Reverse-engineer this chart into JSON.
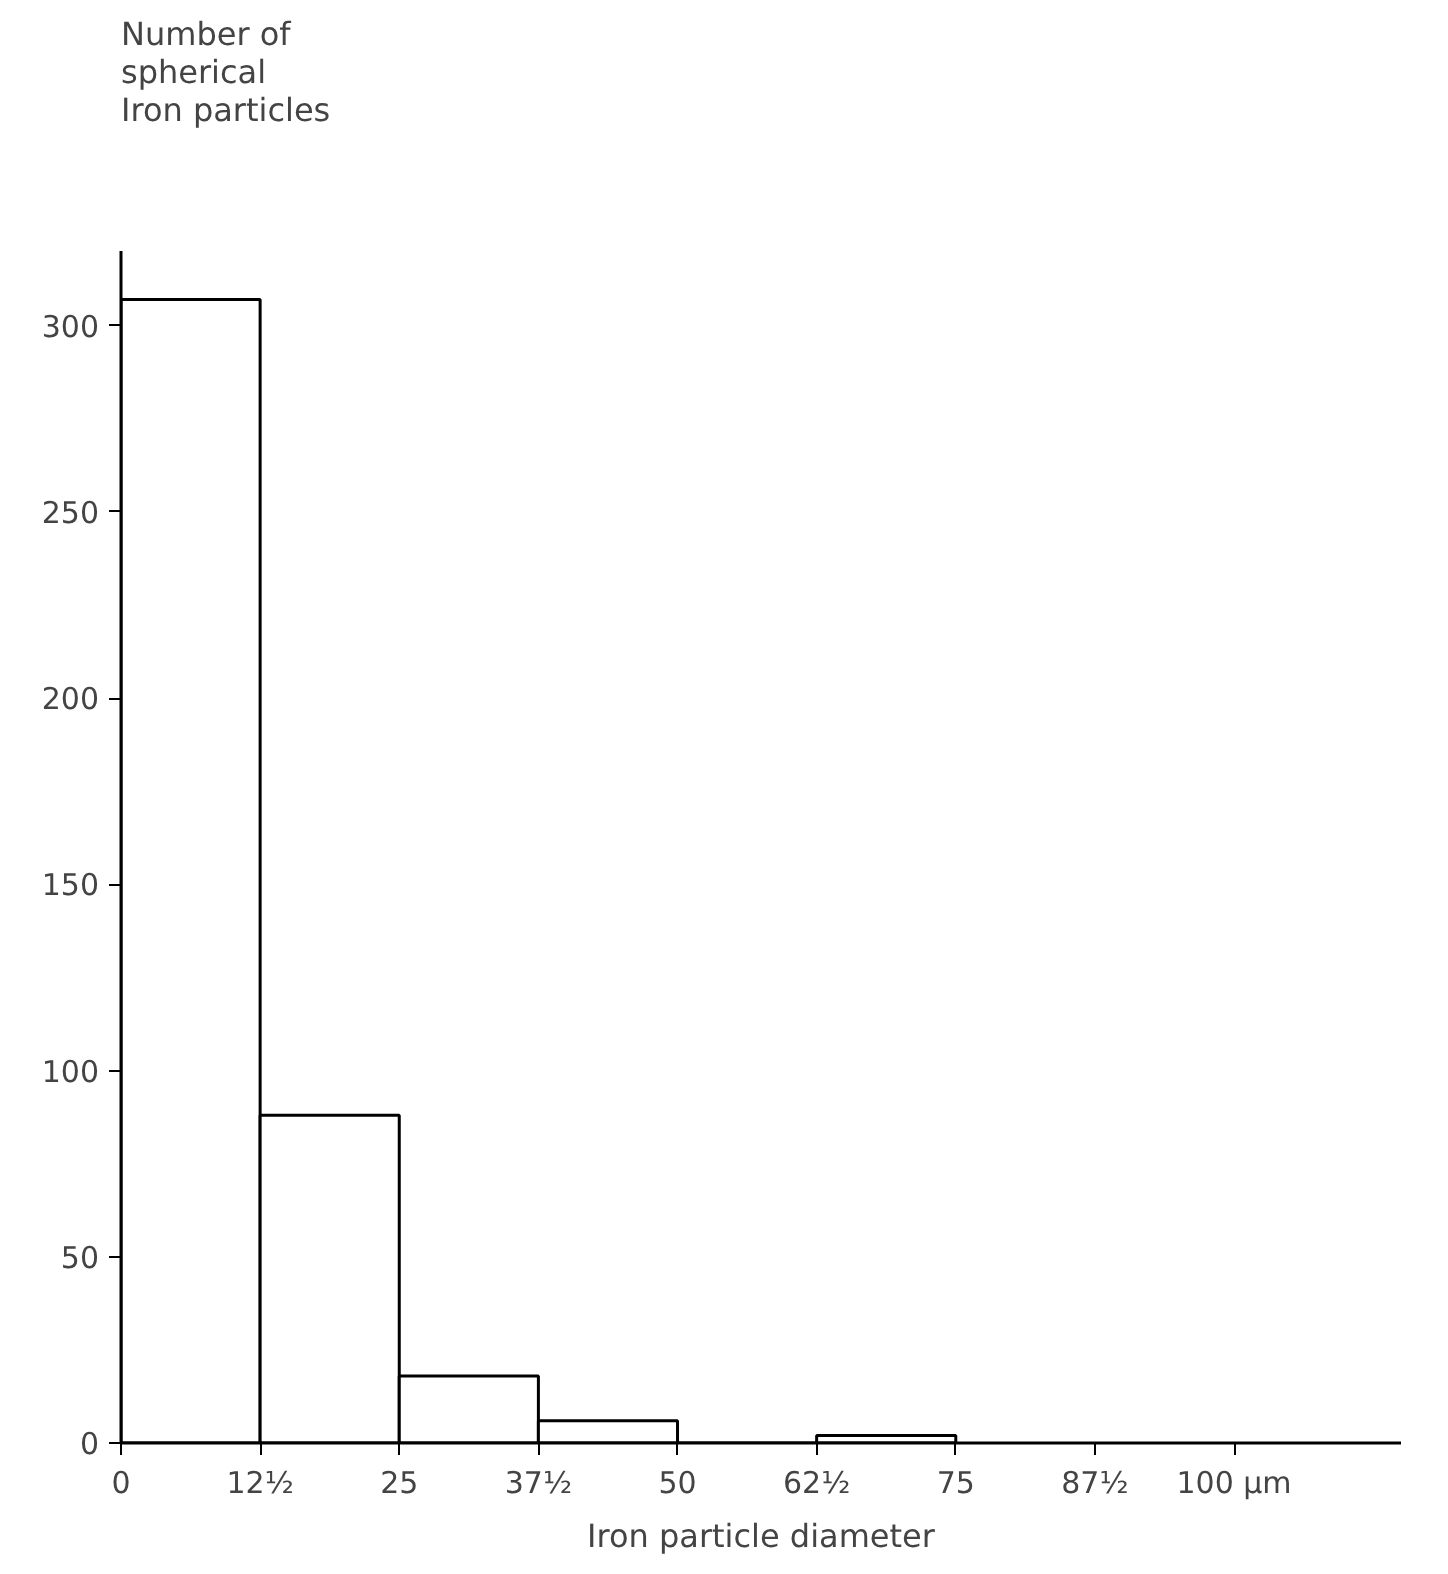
{
  "chart_data": {
    "type": "histogram",
    "ylabel": "Number of\nspherical\nIron particles",
    "xlabel": "Iron particle diameter",
    "bins": [
      0,
      12.5,
      25,
      37.5,
      50,
      62.5,
      75
    ],
    "values": [
      307,
      88,
      18,
      6,
      0,
      2
    ],
    "color": "#ffffff",
    "xlim": [
      0,
      115
    ],
    "ylim": [
      0,
      320
    ],
    "xticks": [
      0,
      {
        "value": 12.5,
        "label": "12½"
      },
      25,
      {
        "value": 37.5,
        "label": "37½"
      },
      50,
      {
        "value": 62.5,
        "label": "62½"
      },
      75,
      {
        "value": 87.5,
        "label": "87½"
      },
      {
        "value": 100,
        "label": "100 µm"
      }
    ],
    "yticks": [
      0,
      50,
      100,
      150,
      200,
      250,
      300
    ],
    "grid": false
  }
}
